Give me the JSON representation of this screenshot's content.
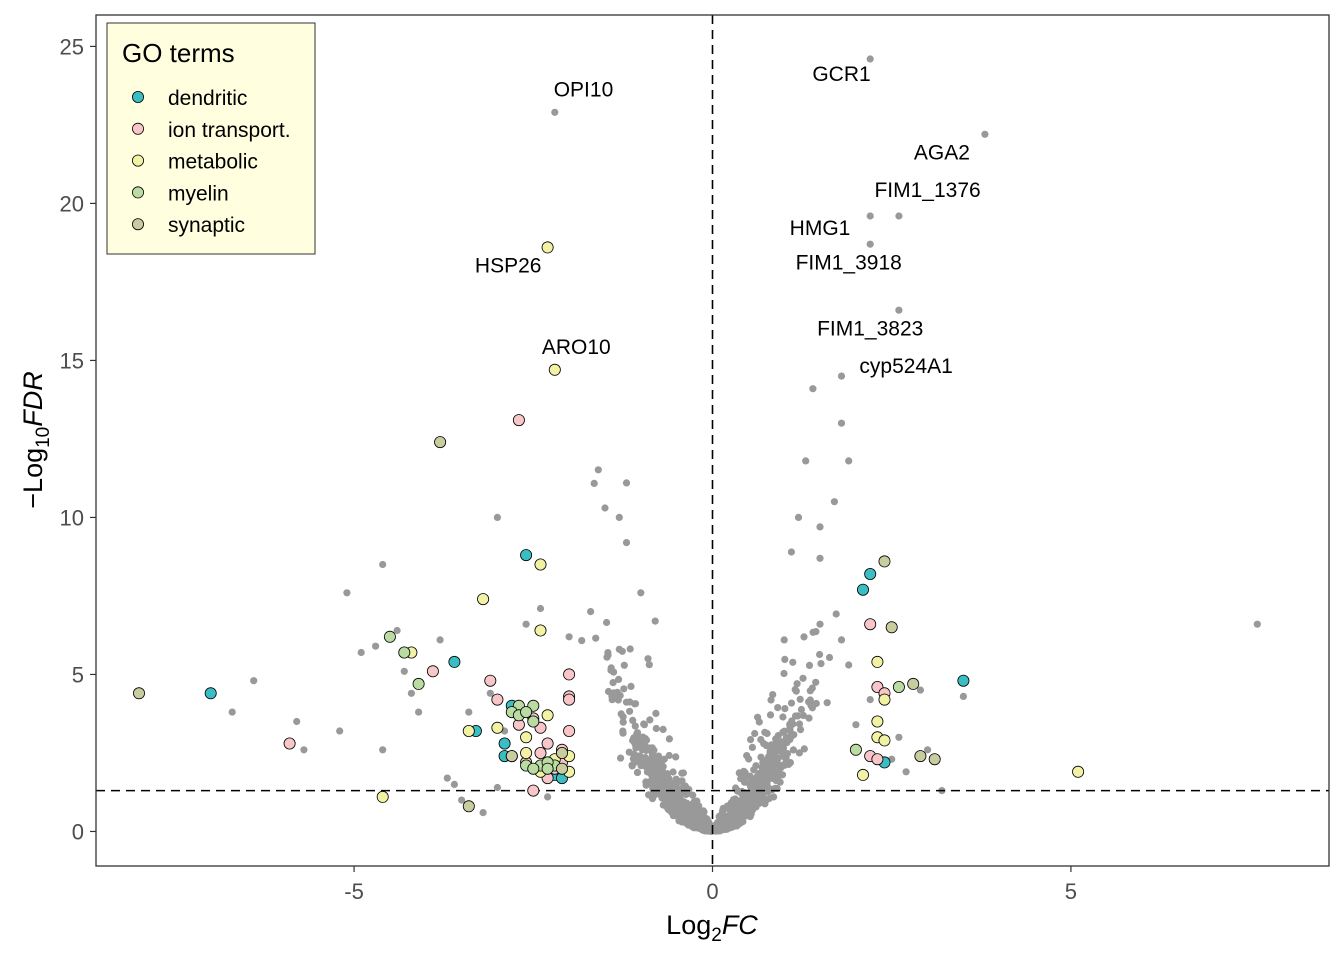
{
  "chart_data": {
    "type": "scatter",
    "title": "",
    "xlabel": "Log2FC",
    "xlabel_parts": {
      "base": "Log",
      "sub": "2",
      "var": "FC"
    },
    "ylabel": "-Log10FDR",
    "ylabel_parts": {
      "prefix": "−",
      "base": "Log",
      "sub": "10",
      "var": "FDR"
    },
    "xlim": [
      -8.6,
      8.6
    ],
    "ylim": [
      -1.1,
      26.0
    ],
    "xticks": [
      -5,
      0,
      5
    ],
    "xtick_labels": [
      "-5",
      "0",
      "5"
    ],
    "yticks": [
      0,
      5,
      10,
      15,
      20,
      25
    ],
    "ytick_labels": [
      "0",
      "5",
      "10",
      "15",
      "20",
      "25"
    ],
    "grid": false,
    "reference_lines": {
      "vertical_x": 0,
      "horizontal_y": 1.3,
      "style": "dashed"
    },
    "legend": {
      "title": "GO terms",
      "placement": "top-left",
      "background": "#FFFFE0",
      "entries": [
        {
          "name": "dendritic",
          "color": "#3BBDC4"
        },
        {
          "name": "ion transport.",
          "color": "#F8C6C8"
        },
        {
          "name": "metabolic",
          "color": "#F2F2A4"
        },
        {
          "name": "myelin",
          "color": "#BADCA2"
        },
        {
          "name": "synaptic",
          "color": "#C8CC9E"
        }
      ]
    },
    "background_color": "#999999",
    "background_points": [
      [
        -2.2,
        22.9
      ],
      [
        2.2,
        24.6
      ],
      [
        3.8,
        22.2
      ],
      [
        2.2,
        19.6
      ],
      [
        2.6,
        19.6
      ],
      [
        2.2,
        18.7
      ],
      [
        2.6,
        16.6
      ],
      [
        1.8,
        14.5
      ],
      [
        1.4,
        14.1
      ],
      [
        1.8,
        13.0
      ],
      [
        1.3,
        11.8
      ],
      [
        1.9,
        11.8
      ],
      [
        -1.2,
        11.1
      ],
      [
        -1.5,
        10.3
      ],
      [
        -1.3,
        10.0
      ],
      [
        -3.0,
        10.0
      ],
      [
        -1.2,
        9.2
      ],
      [
        1.7,
        10.5
      ],
      [
        1.2,
        10.0
      ],
      [
        1.5,
        9.7
      ],
      [
        1.5,
        8.7
      ],
      [
        1.1,
        8.9
      ],
      [
        -4.6,
        8.5
      ],
      [
        -5.1,
        7.6
      ],
      [
        -4.4,
        6.4
      ],
      [
        -3.8,
        6.1
      ],
      [
        -4.7,
        5.9
      ],
      [
        -4.9,
        5.7
      ],
      [
        -6.4,
        4.8
      ],
      [
        -6.7,
        3.8
      ],
      [
        -5.8,
        3.5
      ],
      [
        -5.7,
        2.6
      ],
      [
        -5.2,
        3.2
      ],
      [
        -4.6,
        2.6
      ],
      [
        -4.1,
        3.8
      ],
      [
        -3.7,
        1.7
      ],
      [
        -3.5,
        1.0
      ],
      [
        -3.2,
        0.6
      ],
      [
        -3.0,
        1.4
      ],
      [
        -2.3,
        1.1
      ],
      [
        3.2,
        1.3
      ],
      [
        3.5,
        4.3
      ],
      [
        2.6,
        3.0
      ],
      [
        2.8,
        4.7
      ],
      [
        7.6,
        6.6
      ],
      [
        2.2,
        4.2
      ],
      [
        2.9,
        4.5
      ],
      [
        1.9,
        5.3
      ],
      [
        1.8,
        6.1
      ],
      [
        1.5,
        6.6
      ],
      [
        1.0,
        6.1
      ],
      [
        -1.0,
        7.6
      ],
      [
        -0.8,
        6.7
      ],
      [
        -1.7,
        7.0
      ],
      [
        -2.4,
        7.1
      ],
      [
        -2.0,
        6.2
      ],
      [
        -1.3,
        5.8
      ],
      [
        -0.9,
        5.5
      ],
      [
        -2.6,
        6.6
      ],
      [
        -2.9,
        3.2
      ],
      [
        -3.4,
        3.8
      ],
      [
        -3.1,
        4.4
      ],
      [
        2.0,
        3.4
      ],
      [
        1.6,
        4.1
      ],
      [
        2.5,
        2.3
      ],
      [
        2.7,
        1.9
      ],
      [
        -3.6,
        1.5
      ],
      [
        -4.2,
        4.4
      ],
      [
        -4.3,
        5.1
      ],
      [
        3.0,
        2.6
      ]
    ],
    "cloud_seed": 71,
    "cloud_count": 1700,
    "series": [
      {
        "name": "dendritic",
        "color": "#3BBDC4",
        "points": [
          [
            -7.0,
            4.4
          ],
          [
            -3.6,
            5.4
          ],
          [
            -2.6,
            8.8
          ],
          [
            -3.3,
            3.2
          ],
          [
            -2.9,
            2.8
          ],
          [
            -2.9,
            2.4
          ],
          [
            -2.8,
            4.0
          ],
          [
            -2.2,
            1.8
          ],
          [
            -2.1,
            2.4
          ],
          [
            -2.1,
            1.7
          ],
          [
            2.1,
            7.7
          ],
          [
            2.2,
            8.2
          ],
          [
            3.5,
            4.8
          ],
          [
            2.4,
            2.2
          ]
        ]
      },
      {
        "name": "ion transport.",
        "color": "#F8C6C8",
        "points": [
          [
            -5.9,
            2.8
          ],
          [
            -3.9,
            5.1
          ],
          [
            -3.1,
            4.8
          ],
          [
            -3.0,
            4.2
          ],
          [
            -2.7,
            3.8
          ],
          [
            -2.7,
            3.4
          ],
          [
            -2.5,
            3.6
          ],
          [
            -2.4,
            2.5
          ],
          [
            -2.3,
            1.7
          ],
          [
            -2.2,
            2.0
          ],
          [
            -2.6,
            2.2
          ],
          [
            -2.5,
            1.3
          ],
          [
            -2.1,
            2.6
          ],
          [
            -2.0,
            3.2
          ],
          [
            -2.0,
            4.3
          ],
          [
            -2.0,
            5.0
          ],
          [
            -2.0,
            4.2
          ],
          [
            -2.7,
            13.1
          ],
          [
            -2.3,
            2.8
          ],
          [
            2.2,
            6.6
          ],
          [
            2.3,
            4.6
          ],
          [
            2.4,
            4.4
          ],
          [
            2.2,
            2.4
          ],
          [
            2.3,
            2.3
          ],
          [
            -2.4,
            3.3
          ],
          [
            -2.1,
            2.2
          ]
        ]
      },
      {
        "name": "metabolic",
        "color": "#F2F2A4",
        "points": [
          [
            -2.3,
            18.6
          ],
          [
            -2.2,
            14.7
          ],
          [
            -2.4,
            8.5
          ],
          [
            -3.2,
            7.4
          ],
          [
            -2.4,
            6.4
          ],
          [
            -4.2,
            5.7
          ],
          [
            -3.4,
            3.2
          ],
          [
            -3.0,
            3.3
          ],
          [
            -2.6,
            3.0
          ],
          [
            -2.3,
            3.7
          ],
          [
            -2.0,
            2.4
          ],
          [
            -2.2,
            2.3
          ],
          [
            -4.6,
            1.1
          ],
          [
            -2.0,
            1.9
          ],
          [
            -2.4,
            1.9
          ],
          [
            2.3,
            5.4
          ],
          [
            2.4,
            4.2
          ],
          [
            2.3,
            3.5
          ],
          [
            2.3,
            3.0
          ],
          [
            2.4,
            2.9
          ],
          [
            2.1,
            1.8
          ],
          [
            5.1,
            1.9
          ],
          [
            -2.6,
            2.5
          ],
          [
            -2.8,
            2.4
          ]
        ]
      },
      {
        "name": "myelin",
        "color": "#BADCA2",
        "points": [
          [
            -4.5,
            6.2
          ],
          [
            -4.3,
            5.7
          ],
          [
            -4.1,
            4.7
          ],
          [
            -2.7,
            4.0
          ],
          [
            -2.5,
            4.0
          ],
          [
            -2.8,
            3.8
          ],
          [
            -2.7,
            3.7
          ],
          [
            -2.6,
            3.8
          ],
          [
            -2.5,
            3.5
          ],
          [
            -2.6,
            2.1
          ],
          [
            -2.4,
            2.1
          ],
          [
            -2.2,
            2.1
          ],
          [
            -2.3,
            2.2
          ],
          [
            2.0,
            2.6
          ],
          [
            2.6,
            4.6
          ],
          [
            -2.5,
            2.0
          ],
          [
            -2.3,
            2.0
          ]
        ]
      },
      {
        "name": "synaptic",
        "color": "#C8CC9E",
        "points": [
          [
            -8.0,
            4.4
          ],
          [
            -3.8,
            12.4
          ],
          [
            2.4,
            8.6
          ],
          [
            2.5,
            6.5
          ],
          [
            2.8,
            4.7
          ],
          [
            2.9,
            2.4
          ],
          [
            3.1,
            2.3
          ],
          [
            -3.4,
            0.8
          ],
          [
            -2.8,
            2.4
          ],
          [
            -2.1,
            2.5
          ],
          [
            -2.1,
            2.0
          ]
        ]
      }
    ],
    "annotations": [
      {
        "text": "OPI10",
        "x": -1.8,
        "y": 23.4
      },
      {
        "text": "GCR1",
        "x": 1.8,
        "y": 23.9
      },
      {
        "text": "AGA2",
        "x": 3.2,
        "y": 21.4
      },
      {
        "text": "FIM1_1376",
        "x": 3.0,
        "y": 20.2
      },
      {
        "text": "HMG1",
        "x": 1.5,
        "y": 19.0
      },
      {
        "text": "HSP26",
        "x": -2.85,
        "y": 17.8
      },
      {
        "text": "FIM1_3918",
        "x": 1.9,
        "y": 17.9
      },
      {
        "text": "FIM1_3823",
        "x": 2.2,
        "y": 15.8
      },
      {
        "text": "ARO10",
        "x": -1.9,
        "y": 15.2
      },
      {
        "text": "cyp524A1",
        "x": 2.7,
        "y": 14.6
      }
    ]
  }
}
